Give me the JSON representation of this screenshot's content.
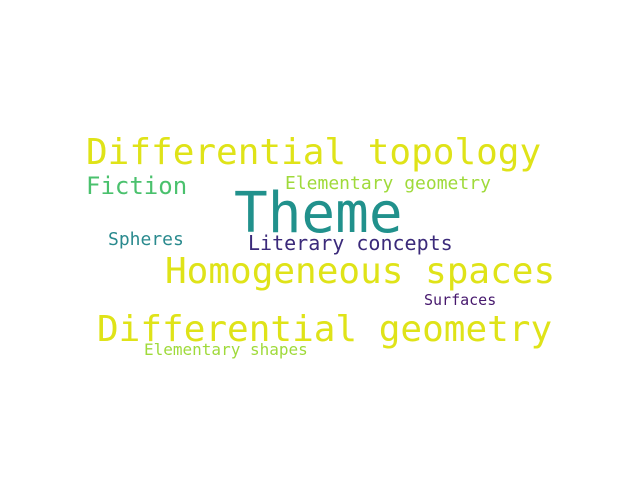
{
  "words": {
    "theme": {
      "text": "Theme",
      "color": "#21918c"
    },
    "diff_top": {
      "text": "Differential topology",
      "color": "#dfe318"
    },
    "homogeneous": {
      "text": "Homogeneous spaces",
      "color": "#dfe318"
    },
    "diff_geo": {
      "text": "Differential geometry",
      "color": "#dfe318"
    },
    "fiction": {
      "text": "Fiction",
      "color": "#4ac16d"
    },
    "elem_geo": {
      "text": "Elementary geometry",
      "color": "#9fda3a"
    },
    "literary": {
      "text": "Literary concepts",
      "color": "#3b2a7a"
    },
    "spheres": {
      "text": "Spheres",
      "color": "#2a8a8e"
    },
    "surfaces": {
      "text": "Surfaces",
      "color": "#46186d"
    },
    "elem_shapes": {
      "text": "Elementary shapes",
      "color": "#9fda3a"
    }
  }
}
